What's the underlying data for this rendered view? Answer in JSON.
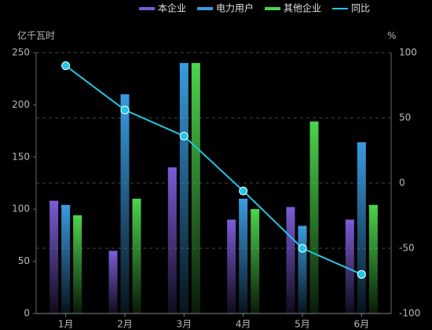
{
  "chart_data": {
    "type": "bar-line",
    "y_axis_label": "亿千瓦时",
    "y2_axis_label": "%",
    "categories": [
      "1月",
      "2月",
      "3月",
      "4月",
      "5月",
      "6月"
    ],
    "series": [
      {
        "name": "本企业",
        "type": "bar",
        "color": "#7b5cd6",
        "values": [
          108,
          60,
          140,
          90,
          102,
          90
        ]
      },
      {
        "name": "电力用户",
        "type": "bar",
        "color": "#3a9be0",
        "values": [
          104,
          210,
          240,
          110,
          84,
          164
        ]
      },
      {
        "name": "其他企业",
        "type": "bar",
        "color": "#4cd44c",
        "values": [
          94,
          110,
          240,
          100,
          184,
          104
        ]
      },
      {
        "name": "同比",
        "type": "line",
        "axis": "y2",
        "color": "#1ec8e6",
        "values": [
          90,
          56,
          36,
          -6,
          -50,
          -70
        ]
      }
    ],
    "ylim": [
      0,
      250
    ],
    "yticks": [
      0,
      50,
      100,
      150,
      200,
      250
    ],
    "y2lim": [
      -100,
      100
    ],
    "y2ticks": [
      -100,
      -50,
      0,
      50,
      100
    ],
    "grid": true
  }
}
